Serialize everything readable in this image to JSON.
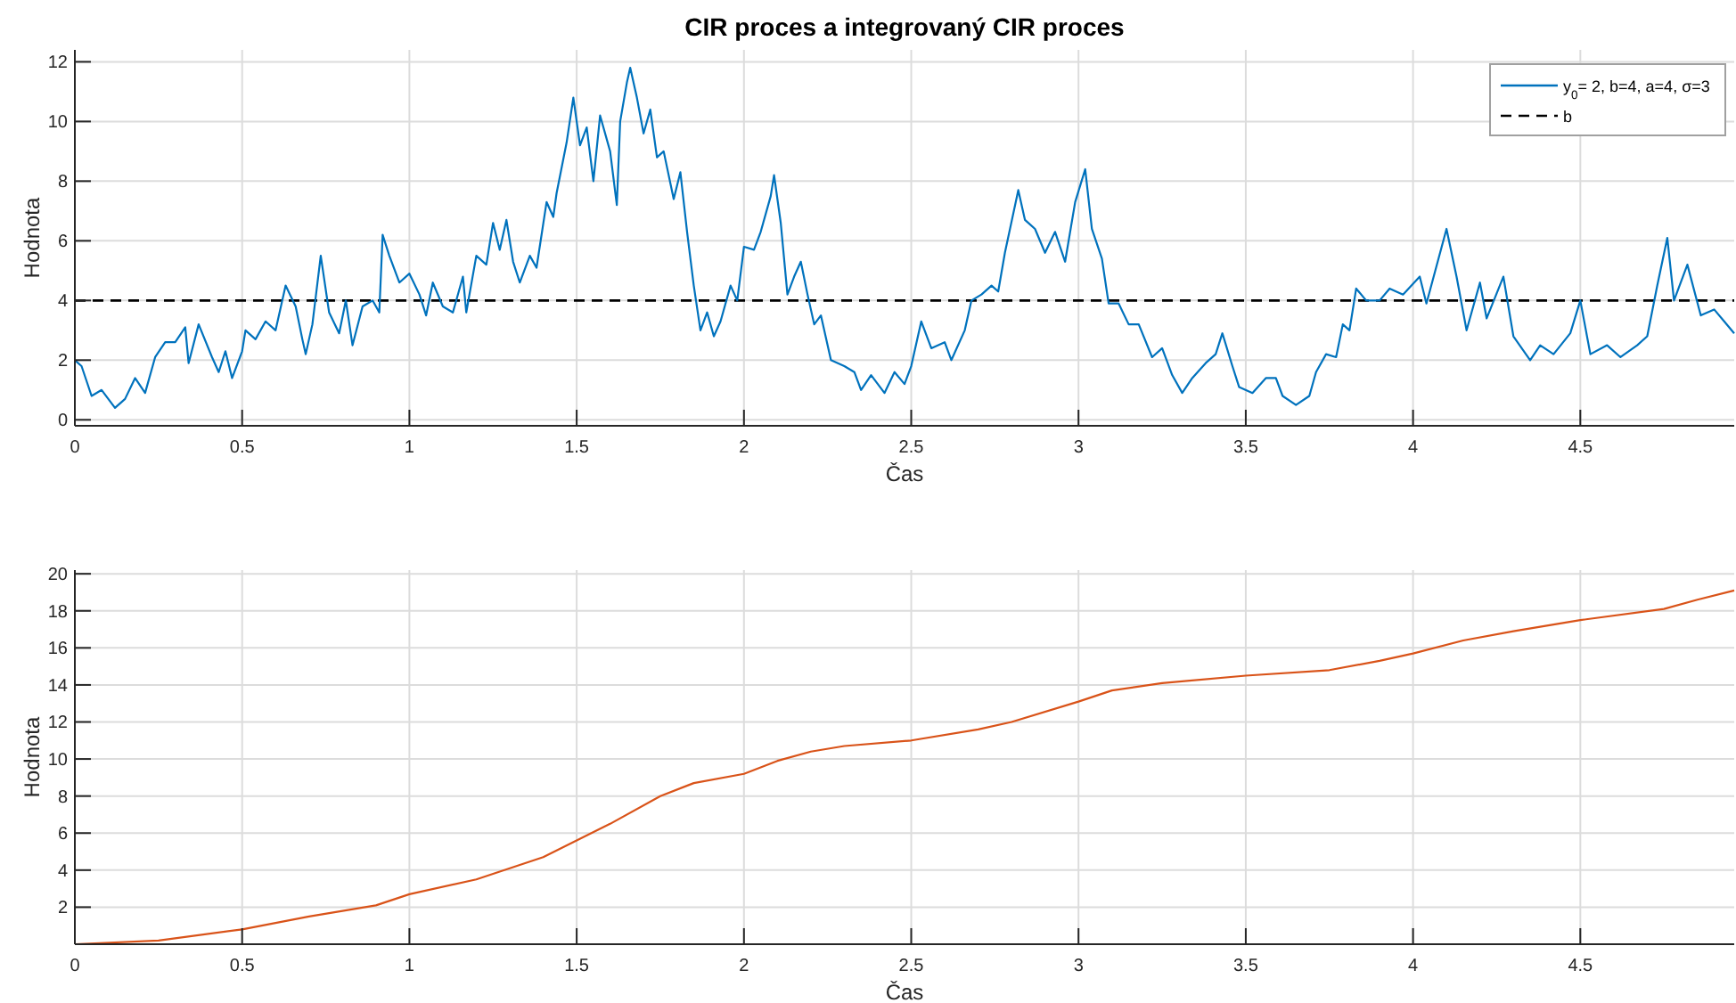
{
  "chart_data": [
    {
      "type": "line",
      "title": "CIR proces a integrovaný CIR proces",
      "xlabel": "Čas",
      "ylabel": "Hodnota",
      "xlim": [
        0,
        4.96
      ],
      "ylim": [
        -0.2,
        12.4
      ],
      "xticks": [
        0,
        0.5,
        1,
        1.5,
        2,
        2.5,
        3,
        3.5,
        4,
        4.5
      ],
      "yticks": [
        0,
        2,
        4,
        6,
        8,
        10,
        12
      ],
      "grid": true,
      "legend": "top right",
      "line_style": "solid",
      "series": [
        {
          "name": "y$_{0}$= 2, b=4, a=4, σ=3",
          "color": "#0072bd",
          "x": [
            0,
            0.02,
            0.05,
            0.08,
            0.1,
            0.12,
            0.15,
            0.18,
            0.21,
            0.24,
            0.27,
            0.3,
            0.33,
            0.34,
            0.37,
            0.41,
            0.43,
            0.45,
            0.47,
            0.5,
            0.51,
            0.54,
            0.57,
            0.6,
            0.63,
            0.66,
            0.68,
            0.69,
            0.71,
            0.735,
            0.76,
            0.79,
            0.81,
            0.83,
            0.86,
            0.89,
            0.91,
            0.92,
            0.94,
            0.97,
            1.0,
            1.03,
            1.05,
            1.07,
            1.1,
            1.13,
            1.16,
            1.17,
            1.2,
            1.23,
            1.25,
            1.27,
            1.29,
            1.31,
            1.33,
            1.36,
            1.38,
            1.41,
            1.43,
            1.44,
            1.47,
            1.49,
            1.51,
            1.53,
            1.55,
            1.57,
            1.6,
            1.62,
            1.63,
            1.65,
            1.66,
            1.68,
            1.7,
            1.72,
            1.74,
            1.76,
            1.79,
            1.81,
            1.83,
            1.85,
            1.87,
            1.89,
            1.91,
            1.93,
            1.96,
            1.98,
            2.0,
            2.03,
            2.05,
            2.08,
            2.09,
            2.11,
            2.13,
            2.15,
            2.17,
            2.19,
            2.21,
            2.23,
            2.26,
            2.3,
            2.33,
            2.35,
            2.38,
            2.42,
            2.45,
            2.48,
            2.5,
            2.53,
            2.56,
            2.6,
            2.62,
            2.66,
            2.68,
            2.71,
            2.74,
            2.76,
            2.78,
            2.82,
            2.84,
            2.87,
            2.9,
            2.93,
            2.96,
            2.99,
            3.02,
            3.04,
            3.07,
            3.09,
            3.12,
            3.15,
            3.18,
            3.22,
            3.25,
            3.28,
            3.31,
            3.34,
            3.38,
            3.41,
            3.43,
            3.46,
            3.48,
            3.52,
            3.56,
            3.59,
            3.61,
            3.65,
            3.69,
            3.71,
            3.74,
            3.77,
            3.79,
            3.81,
            3.83,
            3.86,
            3.9,
            3.93,
            3.97,
            4.02,
            4.04,
            4.1,
            4.13,
            4.16,
            4.2,
            4.22,
            4.27,
            4.3,
            4.35,
            4.38,
            4.42,
            4.47,
            4.5,
            4.53,
            4.58,
            4.62,
            4.67,
            4.7,
            4.73,
            4.76,
            4.78,
            4.82,
            4.86,
            4.9,
            4.93,
            4.96
          ],
          "values": [
            2.0,
            1.8,
            0.8,
            1.0,
            0.7,
            0.4,
            0.7,
            1.4,
            0.9,
            2.1,
            2.6,
            2.6,
            3.1,
            1.9,
            3.2,
            2.1,
            1.6,
            2.3,
            1.4,
            2.3,
            3.0,
            2.7,
            3.3,
            3.0,
            4.5,
            3.8,
            2.7,
            2.2,
            3.2,
            5.5,
            3.6,
            2.9,
            4.0,
            2.5,
            3.8,
            4.0,
            3.6,
            6.2,
            5.5,
            4.6,
            4.9,
            4.2,
            3.5,
            4.6,
            3.8,
            3.6,
            4.8,
            3.6,
            5.5,
            5.2,
            6.6,
            5.7,
            6.7,
            5.3,
            4.6,
            5.5,
            5.1,
            7.3,
            6.8,
            7.6,
            9.3,
            10.8,
            9.2,
            9.8,
            8.0,
            10.2,
            9.0,
            7.2,
            10.0,
            11.3,
            11.8,
            10.8,
            9.6,
            10.4,
            8.8,
            9.0,
            7.4,
            8.3,
            6.3,
            4.5,
            3.0,
            3.6,
            2.8,
            3.3,
            4.5,
            4.0,
            5.8,
            5.7,
            6.3,
            7.5,
            8.2,
            6.6,
            4.2,
            4.8,
            5.3,
            4.2,
            3.2,
            3.5,
            2.0,
            1.8,
            1.6,
            1.0,
            1.5,
            0.9,
            1.6,
            1.2,
            1.8,
            3.3,
            2.4,
            2.6,
            2.0,
            3.0,
            4.0,
            4.2,
            4.5,
            4.3,
            5.6,
            7.7,
            6.7,
            6.4,
            5.6,
            6.3,
            5.3,
            7.3,
            8.4,
            6.4,
            5.4,
            3.9,
            3.9,
            3.2,
            3.2,
            2.1,
            2.4,
            1.5,
            0.9,
            1.4,
            1.9,
            2.2,
            2.9,
            1.8,
            1.1,
            0.9,
            1.4,
            1.4,
            0.8,
            0.5,
            0.8,
            1.6,
            2.2,
            2.1,
            3.2,
            3.0,
            4.4,
            4.0,
            4.0,
            4.4,
            4.2,
            4.8,
            3.9,
            6.4,
            4.8,
            3.0,
            4.6,
            3.4,
            4.8,
            2.8,
            2.0,
            2.5,
            2.2,
            2.9,
            4.0,
            2.2,
            2.5,
            2.1,
            2.5,
            2.8,
            4.5,
            6.1,
            4.0,
            5.2,
            3.5,
            3.7,
            3.3,
            2.9
          ]
        }
      ],
      "ref_lines": [
        {
          "axis": "y",
          "value": 4,
          "label": "b",
          "color": "#000000",
          "line_style": "dashed"
        }
      ]
    },
    {
      "type": "line",
      "xlabel": "Čas",
      "ylabel": "Hodnota",
      "xlim": [
        0,
        4.96
      ],
      "ylim": [
        0,
        20.2
      ],
      "xticks": [
        0,
        0.5,
        1,
        1.5,
        2,
        2.5,
        3,
        3.5,
        4,
        4.5
      ],
      "yticks": [
        2,
        4,
        6,
        8,
        10,
        12,
        14,
        16,
        18,
        20
      ],
      "grid": true,
      "line_style": "solid",
      "series": [
        {
          "color": "#d95319",
          "x": [
            0,
            0.25,
            0.5,
            0.7,
            0.9,
            1.0,
            1.2,
            1.4,
            1.5,
            1.6,
            1.75,
            1.85,
            2.0,
            2.1,
            2.2,
            2.3,
            2.5,
            2.7,
            2.8,
            3.0,
            3.1,
            3.25,
            3.5,
            3.75,
            3.9,
            4.0,
            4.15,
            4.3,
            4.5,
            4.75,
            4.85,
            4.96
          ],
          "values": [
            0,
            0.2,
            0.8,
            1.5,
            2.1,
            2.7,
            3.5,
            4.7,
            5.6,
            6.5,
            8.0,
            8.7,
            9.2,
            9.9,
            10.4,
            10.7,
            11.0,
            11.6,
            12.0,
            13.1,
            13.7,
            14.1,
            14.5,
            14.8,
            15.3,
            15.7,
            16.4,
            16.9,
            17.5,
            18.1,
            18.6,
            19.1
          ]
        }
      ]
    }
  ]
}
